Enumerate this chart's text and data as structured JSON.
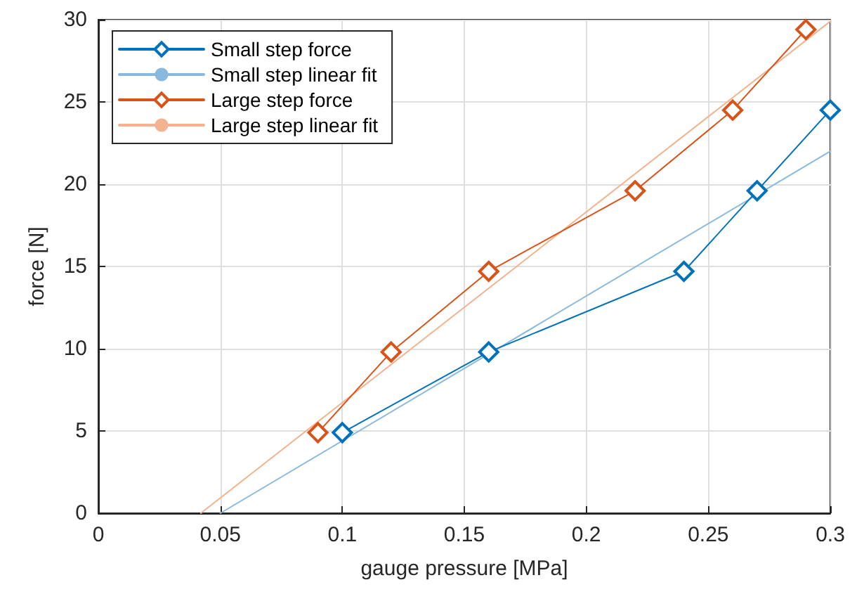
{
  "chart_data": {
    "type": "line",
    "xlabel": "gauge pressure [MPa]",
    "ylabel": "force [N]",
    "xlim": [
      0,
      0.3
    ],
    "xticks": [
      0,
      0.05,
      0.1,
      0.15,
      0.2,
      0.25,
      0.3
    ],
    "ylim": [
      0,
      30
    ],
    "yticks": [
      0,
      5,
      10,
      15,
      20,
      25,
      30
    ],
    "grid": true,
    "legend": "top left",
    "line_style": "solid",
    "series": [
      {
        "name": "Small step force",
        "color": "#0072bd",
        "marker": "diamond",
        "x": [
          0.1,
          0.16,
          0.24,
          0.27,
          0.3
        ],
        "values": [
          4.9,
          9.8,
          14.7,
          19.6,
          24.5
        ]
      },
      {
        "name": "Small step linear fit",
        "color": "#8ab9e0",
        "marker": "none",
        "x": [
          0.05,
          0.3
        ],
        "values": [
          0,
          22
        ]
      },
      {
        "name": "Large step force",
        "color": "#d95319",
        "marker": "diamond",
        "x": [
          0.09,
          0.12,
          0.16,
          0.22,
          0.26,
          0.29
        ],
        "values": [
          4.9,
          9.8,
          14.7,
          19.6,
          24.5,
          29.4
        ]
      },
      {
        "name": "Large step linear fit",
        "color": "#f4b28f",
        "marker": "none",
        "x": [
          0.042,
          0.3
        ],
        "values": [
          0,
          29.9
        ]
      }
    ]
  }
}
